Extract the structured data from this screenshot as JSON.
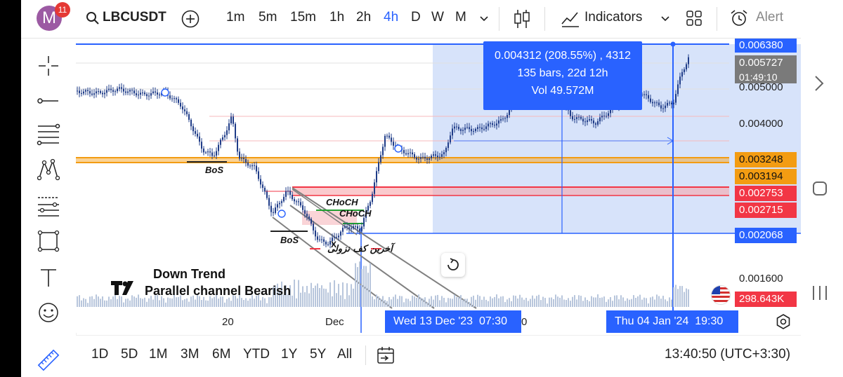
{
  "topbar": {
    "avatar_letter": "M",
    "badge_count": "11",
    "symbol": "LBCUSDT",
    "intervals": [
      "1m",
      "5m",
      "15m",
      "1h",
      "2h",
      "4h",
      "D",
      "W",
      "M"
    ],
    "active_interval": "4h",
    "indicators_label": "Indicators",
    "alert_label": "Alert"
  },
  "price_scale": {
    "labels": [
      {
        "text": "0.006380",
        "color": "#2962ff"
      },
      {
        "text": "0.005727",
        "color": "#7a7a7a"
      },
      {
        "text": "01:49:10",
        "color": "#7a7a7a"
      },
      {
        "text": "0.005000",
        "color": ""
      },
      {
        "text": "0.004000",
        "color": ""
      },
      {
        "text": "0.003248",
        "color": "#f39c12"
      },
      {
        "text": "0.003194",
        "color": "#f39c12"
      },
      {
        "text": "0.002753",
        "color": "#f23645"
      },
      {
        "text": "0.002715",
        "color": "#f23645"
      },
      {
        "text": "0.002068",
        "color": "#2962ff"
      },
      {
        "text": "0.001600",
        "color": ""
      },
      {
        "text": "298.643K",
        "color": "#f23645"
      }
    ]
  },
  "measure": {
    "line1": "0.004312 (208.55%) , 4312",
    "line2": "135 bars, 22d 12h",
    "line3": "Vol 49.572M"
  },
  "annotations": {
    "bos1": "BoS",
    "bos2": "BoS",
    "choch1": "CHoCH",
    "choch2": "CHoCH",
    "arabic": "آخرین کف نزولی",
    "x_mark": "X",
    "down_trend": "Down Trend",
    "parallel": "Parallel channel Bearish"
  },
  "time_axis": {
    "tick1": "20",
    "tick2": "Dec",
    "tick3": "0",
    "start_label": "Wed 13 Dec '23",
    "start_time": "07:30",
    "end_label": "Thu 04 Jan '24",
    "end_time": "19:30"
  },
  "bottombar": {
    "ranges": [
      "1D",
      "5D",
      "1M",
      "3M",
      "6M",
      "YTD",
      "1Y",
      "5Y",
      "All"
    ],
    "clock": "13:40:50 (UTC+3:30)"
  },
  "colors": {
    "accent": "#2962ff",
    "up": "#2962ff",
    "orange": "#f39c12",
    "red": "#f23645"
  }
}
